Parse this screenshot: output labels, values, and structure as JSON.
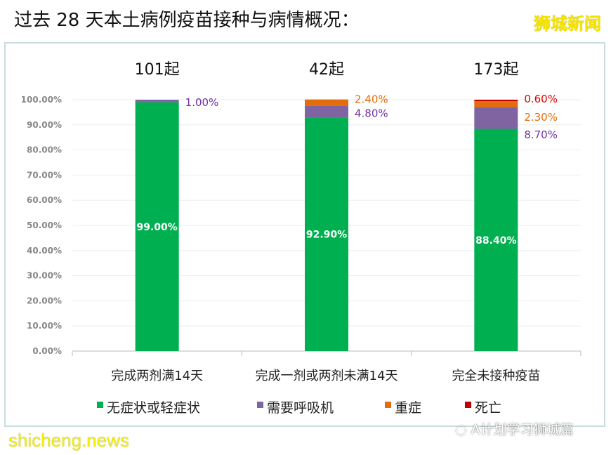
{
  "header": {
    "title": "过去 28 天本土病例疫苗接种与病情概况：",
    "brand": "狮城新闻"
  },
  "watermarks": {
    "site": "shicheng.news",
    "wechat": "A计划学习狮城篇"
  },
  "chart_data": {
    "type": "stacked-bar",
    "categories": [
      "完成两剂满14天",
      "完成一剂或两剂未满14天",
      "完全未接种疫苗"
    ],
    "totals": [
      "101起",
      "42起",
      "173起"
    ],
    "series": [
      {
        "name": "无症状或轻症状",
        "color": "#00b050",
        "values": [
          99.0,
          92.9,
          88.4
        ]
      },
      {
        "name": "需要呼吸机",
        "color": "#8064a2",
        "values": [
          1.0,
          4.8,
          8.7
        ]
      },
      {
        "name": "重症",
        "color": "#e46c0a",
        "values": [
          0,
          2.4,
          2.3
        ]
      },
      {
        "name": "死亡",
        "color": "#c00000",
        "values": [
          0,
          0,
          0.6
        ]
      }
    ],
    "label_colors": [
      "#ffffff",
      "#7030a0",
      "#e46c0a",
      "#e00000"
    ],
    "yticks": [
      "0.00%",
      "10.00%",
      "20.00%",
      "30.00%",
      "40.00%",
      "50.00%",
      "60.00%",
      "70.00%",
      "80.00%",
      "90.00%",
      "100.00%"
    ],
    "ylim": [
      0,
      100
    ],
    "grid": true,
    "legend": "bottom"
  }
}
